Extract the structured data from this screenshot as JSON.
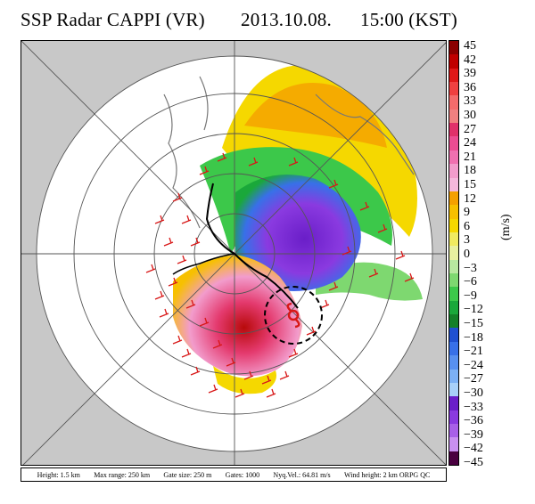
{
  "title": {
    "name": "SSP Radar CAPPI (VR)",
    "date": "2013.10.08.",
    "time": "15:00 (KST)"
  },
  "footer": {
    "height": "Height: 1.5 km",
    "max_range": "Max range: 250 km",
    "gate_size": "Gate size: 250 m",
    "gates": "Gates: 1000",
    "nyquist": "Nyq.Vel.: 64.81 m/s",
    "wind_height": "Wind height: 2 km ORPG QC"
  },
  "colorbar": {
    "unit": "(m/s)",
    "labels": [
      "45",
      "42",
      "39",
      "36",
      "33",
      "30",
      "27",
      "24",
      "21",
      "18",
      "15",
      "12",
      "9",
      "6",
      "3",
      "0",
      "−3",
      "−6",
      "−9",
      "−12",
      "−15",
      "−18",
      "−21",
      "−24",
      "−27",
      "−30",
      "−33",
      "−36",
      "−39",
      "−42",
      "−45"
    ],
    "colors": [
      "#8b0000",
      "#c00000",
      "#e01818",
      "#f04040",
      "#f46b6b",
      "#f08080",
      "#e0306a",
      "#ec4c92",
      "#f070b0",
      "#f29ccc",
      "#f4b8dc",
      "#f5a000",
      "#f7c000",
      "#f5d800",
      "#f0ea60",
      "#e8f0a0",
      "#b8e8a0",
      "#7ed870",
      "#3cc84a",
      "#1aa83a",
      "#148028",
      "#2050d0",
      "#3870e8",
      "#5890f0",
      "#7cb0f4",
      "#a8d0f8",
      "#6a1ec8",
      "#8a3ae0",
      "#a860e8",
      "#c890f0",
      "#4a0040"
    ]
  },
  "map": {
    "storm_symbol": "typhoon-symbol"
  }
}
